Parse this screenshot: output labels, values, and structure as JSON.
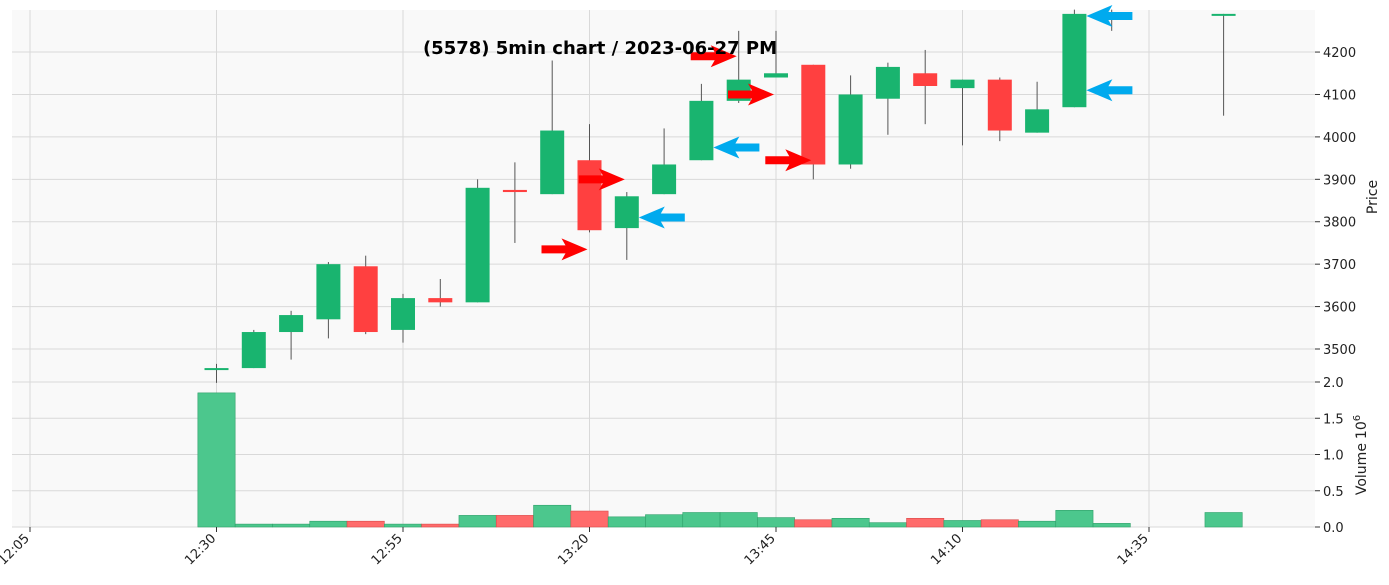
{
  "chart_data": {
    "type": "candlestick",
    "title": "(5578) 5min chart / 2023-06-27 PM",
    "price_axis": {
      "label": "Price",
      "ylim": [
        3420,
        4300
      ],
      "ticks": [
        3500,
        3600,
        3700,
        3800,
        3900,
        4000,
        4100,
        4200
      ]
    },
    "volume_axis": {
      "label": "Volume",
      "exponent": "6",
      "ylim": [
        0,
        2.2
      ],
      "ticks": [
        "0.0",
        "0.5",
        "1.0",
        "1.5",
        "2.0"
      ]
    },
    "x_axis": {
      "tick_labels": [
        "12:05",
        "12:30",
        "12:55",
        "13:20",
        "13:45",
        "14:10",
        "14:35"
      ]
    },
    "colors": {
      "up": "#19b46f",
      "down": "#ff4040",
      "vol_up": "#4cc78d",
      "vol_down": "#ff6b6b",
      "buy_arrow": "#ff0000",
      "sell_arrow": "#00aaee",
      "grid": "#d9d9d9",
      "background": "#f9f9f9"
    },
    "x": [
      "12:05",
      "12:10",
      "12:15",
      "12:20",
      "12:25",
      "12:30",
      "12:35",
      "12:40",
      "12:45",
      "12:50",
      "12:55",
      "13:00",
      "13:05",
      "13:10",
      "13:15",
      "13:20",
      "13:25",
      "13:30",
      "13:35",
      "13:40",
      "13:45",
      "13:50",
      "13:55",
      "14:00",
      "14:05",
      "14:10",
      "14:15",
      "14:20",
      "14:25",
      "14:30",
      "14:35",
      "14:40",
      "14:45"
    ],
    "candles": [
      {
        "t": "12:30",
        "open": 3455,
        "high": 3465,
        "low": 3420,
        "close": 3455,
        "volume": 1.85
      },
      {
        "t": "12:35",
        "open": 3455,
        "high": 3545,
        "low": 3455,
        "close": 3540,
        "volume": 0.04
      },
      {
        "t": "12:40",
        "open": 3540,
        "high": 3590,
        "low": 3475,
        "close": 3580,
        "volume": 0.04
      },
      {
        "t": "12:45",
        "open": 3570,
        "high": 3705,
        "low": 3525,
        "close": 3700,
        "volume": 0.08
      },
      {
        "t": "12:50",
        "open": 3695,
        "high": 3720,
        "low": 3535,
        "close": 3540,
        "volume": 0.08
      },
      {
        "t": "12:55",
        "open": 3545,
        "high": 3630,
        "low": 3515,
        "close": 3620,
        "volume": 0.04
      },
      {
        "t": "13:00",
        "open": 3620,
        "high": 3665,
        "low": 3600,
        "close": 3610,
        "volume": 0.04
      },
      {
        "t": "13:05",
        "open": 3610,
        "high": 3900,
        "low": 3610,
        "close": 3880,
        "volume": 0.16
      },
      {
        "t": "13:10",
        "open": 3875,
        "high": 3940,
        "low": 3750,
        "close": 3870,
        "volume": 0.16
      },
      {
        "t": "13:15",
        "open": 3865,
        "high": 4180,
        "low": 3865,
        "close": 4015,
        "volume": 0.3
      },
      {
        "t": "13:20",
        "open": 3945,
        "high": 4030,
        "low": 3775,
        "close": 3780,
        "volume": 0.22
      },
      {
        "t": "13:25",
        "open": 3785,
        "high": 3870,
        "low": 3710,
        "close": 3860,
        "volume": 0.14
      },
      {
        "t": "13:30",
        "open": 3865,
        "high": 4020,
        "low": 3865,
        "close": 3935,
        "volume": 0.17
      },
      {
        "t": "13:35",
        "open": 3945,
        "high": 4125,
        "low": 3945,
        "close": 4085,
        "volume": 0.2
      },
      {
        "t": "13:40",
        "open": 4085,
        "high": 4250,
        "low": 4080,
        "close": 4135,
        "volume": 0.2
      },
      {
        "t": "13:45",
        "open": 4140,
        "high": 4250,
        "low": 4140,
        "close": 4150,
        "volume": 0.13
      },
      {
        "t": "13:50",
        "open": 4170,
        "high": 4170,
        "low": 3900,
        "close": 3935,
        "volume": 0.1
      },
      {
        "t": "13:55",
        "open": 3935,
        "high": 4145,
        "low": 3925,
        "close": 4100,
        "volume": 0.12
      },
      {
        "t": "14:00",
        "open": 4090,
        "high": 4175,
        "low": 4005,
        "close": 4165,
        "volume": 0.06
      },
      {
        "t": "14:05",
        "open": 4150,
        "high": 4205,
        "low": 4030,
        "close": 4120,
        "volume": 0.12
      },
      {
        "t": "14:10",
        "open": 4115,
        "high": 4135,
        "low": 3980,
        "close": 4135,
        "volume": 0.09
      },
      {
        "t": "14:15",
        "open": 4135,
        "high": 4140,
        "low": 3990,
        "close": 4015,
        "volume": 0.1
      },
      {
        "t": "14:20",
        "open": 4010,
        "high": 4130,
        "low": 4010,
        "close": 4065,
        "volume": 0.08
      },
      {
        "t": "14:25",
        "open": 4070,
        "high": 4300,
        "low": 4070,
        "close": 4290,
        "volume": 0.23
      },
      {
        "t": "14:30",
        "open": 4290,
        "high": 4300,
        "low": 4250,
        "close": 4290,
        "volume": 0.05
      },
      {
        "t": "14:45",
        "open": 4290,
        "high": 4290,
        "low": 4050,
        "close": 4290,
        "volume": 0.2
      }
    ],
    "buy_signals": [
      {
        "t": "13:20",
        "price": 3735
      },
      {
        "t": "13:25",
        "price": 3900
      },
      {
        "t": "13:40",
        "price": 4190
      },
      {
        "t": "13:45",
        "price": 4100
      },
      {
        "t": "13:50",
        "price": 3945
      }
    ],
    "sell_signals": [
      {
        "t": "13:25",
        "price": 3810
      },
      {
        "t": "13:35",
        "price": 3975
      },
      {
        "t": "14:25",
        "price": 4285
      },
      {
        "t": "14:25",
        "price": 4110
      }
    ]
  }
}
